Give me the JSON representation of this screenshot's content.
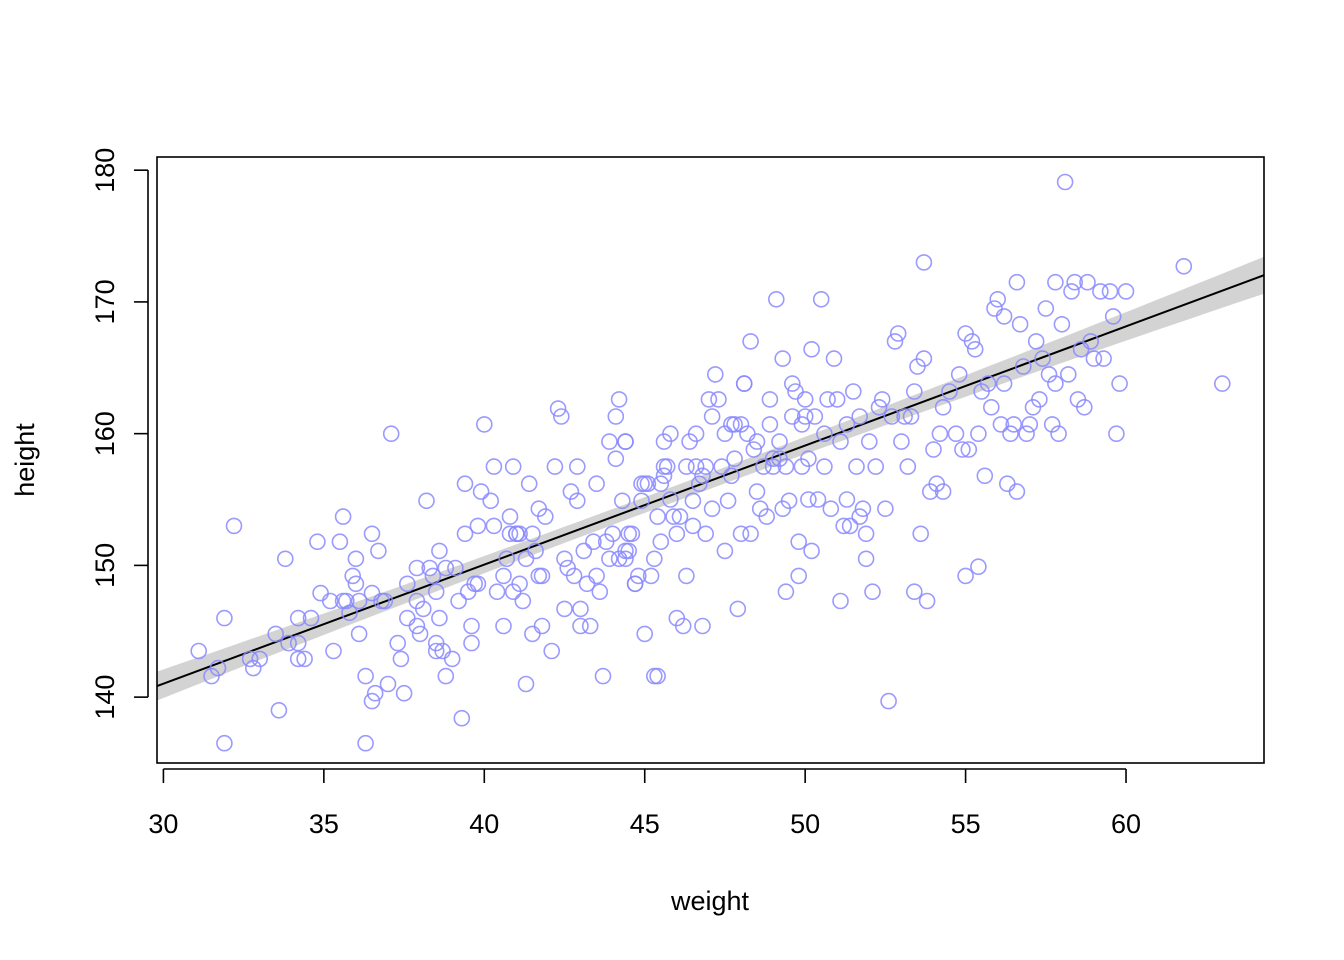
{
  "chart_data": {
    "type": "scatter",
    "xlabel": "weight",
    "ylabel": "height",
    "xlim": [
      29.8,
      64.3
    ],
    "ylim": [
      135,
      181
    ],
    "xticks": [
      "30",
      "35",
      "40",
      "45",
      "50",
      "55",
      "60"
    ],
    "yticks": [
      "140",
      "150",
      "160",
      "170",
      "180"
    ],
    "grid": false,
    "colors": {
      "points": "#8888ff",
      "line": "#000000",
      "band": "#d3d3d3",
      "frame": "#000000"
    },
    "regression_line": {
      "intercept": 113.9,
      "slope": 0.904
    },
    "interval_band": {
      "halfwidth_at_mean": 0.6,
      "halfwidth_at_ends": 1.4
    },
    "points": [
      [
        31.1,
        143.5
      ],
      [
        31.5,
        141.6
      ],
      [
        31.7,
        142.2
      ],
      [
        31.9,
        146.0
      ],
      [
        31.9,
        136.5
      ],
      [
        32.2,
        153.0
      ],
      [
        32.7,
        142.9
      ],
      [
        32.8,
        142.2
      ],
      [
        33.0,
        142.9
      ],
      [
        33.5,
        144.8
      ],
      [
        33.6,
        139.0
      ],
      [
        33.8,
        150.5
      ],
      [
        33.9,
        144.1
      ],
      [
        34.2,
        146.0
      ],
      [
        34.2,
        144.1
      ],
      [
        34.2,
        142.9
      ],
      [
        34.4,
        142.9
      ],
      [
        34.8,
        151.8
      ],
      [
        34.9,
        147.9
      ],
      [
        35.2,
        147.3
      ],
      [
        35.5,
        151.8
      ],
      [
        35.6,
        153.7
      ],
      [
        35.6,
        147.3
      ],
      [
        35.7,
        147.3
      ],
      [
        35.8,
        146.4
      ],
      [
        35.9,
        149.2
      ],
      [
        36.0,
        150.5
      ],
      [
        36.0,
        148.6
      ],
      [
        36.1,
        147.3
      ],
      [
        36.1,
        144.8
      ],
      [
        36.3,
        141.6
      ],
      [
        36.3,
        136.5
      ],
      [
        36.5,
        152.4
      ],
      [
        36.5,
        147.9
      ],
      [
        36.5,
        139.7
      ],
      [
        36.6,
        140.3
      ],
      [
        36.7,
        151.1
      ],
      [
        36.9,
        147.3
      ],
      [
        37.1,
        160.0
      ],
      [
        37.3,
        144.1
      ],
      [
        37.4,
        142.9
      ],
      [
        37.5,
        140.3
      ],
      [
        37.6,
        146.0
      ],
      [
        37.6,
        148.6
      ],
      [
        37.9,
        149.8
      ],
      [
        37.9,
        145.4
      ],
      [
        38.0,
        144.8
      ],
      [
        38.1,
        146.7
      ],
      [
        38.2,
        154.9
      ],
      [
        38.3,
        149.8
      ],
      [
        38.4,
        149.2
      ],
      [
        38.5,
        143.5
      ],
      [
        38.5,
        148.0
      ],
      [
        38.6,
        151.1
      ],
      [
        38.6,
        146.0
      ],
      [
        38.7,
        143.5
      ],
      [
        38.8,
        149.8
      ],
      [
        39.0,
        142.9
      ],
      [
        39.1,
        149.8
      ],
      [
        39.2,
        147.3
      ],
      [
        39.3,
        138.4
      ],
      [
        39.4,
        152.4
      ],
      [
        39.4,
        156.2
      ],
      [
        39.5,
        148.0
      ],
      [
        39.6,
        145.4
      ],
      [
        39.6,
        144.1
      ],
      [
        39.7,
        148.6
      ],
      [
        39.8,
        153.0
      ],
      [
        39.9,
        155.6
      ],
      [
        40.0,
        160.7
      ],
      [
        40.2,
        154.9
      ],
      [
        40.3,
        157.5
      ],
      [
        40.3,
        153.0
      ],
      [
        40.4,
        148.0
      ],
      [
        40.6,
        149.2
      ],
      [
        40.7,
        150.5
      ],
      [
        40.8,
        153.7
      ],
      [
        40.9,
        157.5
      ],
      [
        40.9,
        148.0
      ],
      [
        41.0,
        152.4
      ],
      [
        41.1,
        152.4
      ],
      [
        41.1,
        148.6
      ],
      [
        41.2,
        147.3
      ],
      [
        41.3,
        141.0
      ],
      [
        41.3,
        150.5
      ],
      [
        41.4,
        156.2
      ],
      [
        41.5,
        152.4
      ],
      [
        41.5,
        144.8
      ],
      [
        41.6,
        151.1
      ],
      [
        41.7,
        154.3
      ],
      [
        41.8,
        149.2
      ],
      [
        41.8,
        145.4
      ],
      [
        41.9,
        153.7
      ],
      [
        42.1,
        143.5
      ],
      [
        42.3,
        161.9
      ],
      [
        42.4,
        161.3
      ],
      [
        42.5,
        150.5
      ],
      [
        42.6,
        149.8
      ],
      [
        42.7,
        155.6
      ],
      [
        42.8,
        149.2
      ],
      [
        42.9,
        157.5
      ],
      [
        42.9,
        154.9
      ],
      [
        43.0,
        146.7
      ],
      [
        43.0,
        145.4
      ],
      [
        43.1,
        151.1
      ],
      [
        43.2,
        148.6
      ],
      [
        43.3,
        145.4
      ],
      [
        43.4,
        151.8
      ],
      [
        43.5,
        156.2
      ],
      [
        43.6,
        148.0
      ],
      [
        43.7,
        141.6
      ],
      [
        43.8,
        151.8
      ],
      [
        43.9,
        150.5
      ],
      [
        43.9,
        159.4
      ],
      [
        44.0,
        152.4
      ],
      [
        44.1,
        158.1
      ],
      [
        44.1,
        161.3
      ],
      [
        44.2,
        162.6
      ],
      [
        44.3,
        154.9
      ],
      [
        44.4,
        151.1
      ],
      [
        44.4,
        150.5
      ],
      [
        44.5,
        152.4
      ],
      [
        44.5,
        151.1
      ],
      [
        44.6,
        152.4
      ],
      [
        44.7,
        148.6
      ],
      [
        44.8,
        149.2
      ],
      [
        44.9,
        156.2
      ],
      [
        44.9,
        154.9
      ],
      [
        45.0,
        156.2
      ],
      [
        45.0,
        144.8
      ],
      [
        45.1,
        156.2
      ],
      [
        45.2,
        149.2
      ],
      [
        45.3,
        150.5
      ],
      [
        45.3,
        141.6
      ],
      [
        45.4,
        141.6
      ],
      [
        45.4,
        153.7
      ],
      [
        45.5,
        156.2
      ],
      [
        45.5,
        151.8
      ],
      [
        45.6,
        159.4
      ],
      [
        45.7,
        157.5
      ],
      [
        45.8,
        160.0
      ],
      [
        45.9,
        153.7
      ],
      [
        46.0,
        152.4
      ],
      [
        46.0,
        146.0
      ],
      [
        46.1,
        153.7
      ],
      [
        46.2,
        145.4
      ],
      [
        46.3,
        157.5
      ],
      [
        46.3,
        149.2
      ],
      [
        46.4,
        159.4
      ],
      [
        46.5,
        153.0
      ],
      [
        46.5,
        154.9
      ],
      [
        46.6,
        157.5
      ],
      [
        46.7,
        156.2
      ],
      [
        46.8,
        145.4
      ],
      [
        46.8,
        156.8
      ],
      [
        46.9,
        157.5
      ],
      [
        47.0,
        162.6
      ],
      [
        47.1,
        154.3
      ],
      [
        47.1,
        161.3
      ],
      [
        47.2,
        164.5
      ],
      [
        47.3,
        162.6
      ],
      [
        47.4,
        157.5
      ],
      [
        47.5,
        151.1
      ],
      [
        47.6,
        154.9
      ],
      [
        47.7,
        160.7
      ],
      [
        47.7,
        156.8
      ],
      [
        47.8,
        158.1
      ],
      [
        47.9,
        146.7
      ],
      [
        48.0,
        152.4
      ],
      [
        48.1,
        163.8
      ],
      [
        48.1,
        163.8
      ],
      [
        48.2,
        160.0
      ],
      [
        48.3,
        167.0
      ],
      [
        48.3,
        152.4
      ],
      [
        48.5,
        159.4
      ],
      [
        48.5,
        155.6
      ],
      [
        48.6,
        154.3
      ],
      [
        48.7,
        157.5
      ],
      [
        48.8,
        153.7
      ],
      [
        48.9,
        160.7
      ],
      [
        48.9,
        162.6
      ],
      [
        49.0,
        158.1
      ],
      [
        49.0,
        157.5
      ],
      [
        49.1,
        170.2
      ],
      [
        49.2,
        159.4
      ],
      [
        49.3,
        165.7
      ],
      [
        49.3,
        154.3
      ],
      [
        49.4,
        148.0
      ],
      [
        49.4,
        157.5
      ],
      [
        49.5,
        154.9
      ],
      [
        49.6,
        161.3
      ],
      [
        49.6,
        163.8
      ],
      [
        49.7,
        163.2
      ],
      [
        49.8,
        151.8
      ],
      [
        49.9,
        157.5
      ],
      [
        49.9,
        160.7
      ],
      [
        50.0,
        161.3
      ],
      [
        50.0,
        162.6
      ],
      [
        50.1,
        158.1
      ],
      [
        50.2,
        166.4
      ],
      [
        50.2,
        151.1
      ],
      [
        50.3,
        161.3
      ],
      [
        50.4,
        155.0
      ],
      [
        50.5,
        170.2
      ],
      [
        50.6,
        157.5
      ],
      [
        50.6,
        160.0
      ],
      [
        50.7,
        162.6
      ],
      [
        50.8,
        154.3
      ],
      [
        50.9,
        165.7
      ],
      [
        51.0,
        162.6
      ],
      [
        51.1,
        147.3
      ],
      [
        51.1,
        159.4
      ],
      [
        51.2,
        153.0
      ],
      [
        51.3,
        155.0
      ],
      [
        51.4,
        153.0
      ],
      [
        51.5,
        163.2
      ],
      [
        51.6,
        157.5
      ],
      [
        51.7,
        161.3
      ],
      [
        51.8,
        154.3
      ],
      [
        51.9,
        152.4
      ],
      [
        51.9,
        150.5
      ],
      [
        52.0,
        159.4
      ],
      [
        52.1,
        148.0
      ],
      [
        52.2,
        157.5
      ],
      [
        52.3,
        162.0
      ],
      [
        52.5,
        154.3
      ],
      [
        52.6,
        139.7
      ],
      [
        52.7,
        161.3
      ],
      [
        52.8,
        167.0
      ],
      [
        52.9,
        167.6
      ],
      [
        53.0,
        159.4
      ],
      [
        53.1,
        161.3
      ],
      [
        53.2,
        157.5
      ],
      [
        53.3,
        161.3
      ],
      [
        53.4,
        163.2
      ],
      [
        53.4,
        148.0
      ],
      [
        53.5,
        165.1
      ],
      [
        53.6,
        152.4
      ],
      [
        53.7,
        173.0
      ],
      [
        53.8,
        147.3
      ],
      [
        53.9,
        155.6
      ],
      [
        54.0,
        158.8
      ],
      [
        54.2,
        160.0
      ],
      [
        54.3,
        162.0
      ],
      [
        54.5,
        163.2
      ],
      [
        54.7,
        160.0
      ],
      [
        54.8,
        164.5
      ],
      [
        54.9,
        158.8
      ],
      [
        55.0,
        149.2
      ],
      [
        55.1,
        158.8
      ],
      [
        55.2,
        167.0
      ],
      [
        55.3,
        166.4
      ],
      [
        55.4,
        149.9
      ],
      [
        55.5,
        163.2
      ],
      [
        55.6,
        156.8
      ],
      [
        55.7,
        163.8
      ],
      [
        55.8,
        162.0
      ],
      [
        55.9,
        169.5
      ],
      [
        56.0,
        170.2
      ],
      [
        56.1,
        160.7
      ],
      [
        56.2,
        163.8
      ],
      [
        56.3,
        156.2
      ],
      [
        56.4,
        160.0
      ],
      [
        56.5,
        160.7
      ],
      [
        56.6,
        155.6
      ],
      [
        56.7,
        168.3
      ],
      [
        56.8,
        165.1
      ],
      [
        56.9,
        160.0
      ],
      [
        57.0,
        160.7
      ],
      [
        57.1,
        162.0
      ],
      [
        57.2,
        167.0
      ],
      [
        57.3,
        162.6
      ],
      [
        57.4,
        165.7
      ],
      [
        57.5,
        169.5
      ],
      [
        57.6,
        164.5
      ],
      [
        57.7,
        160.7
      ],
      [
        57.8,
        163.8
      ],
      [
        57.9,
        160.0
      ],
      [
        58.0,
        168.3
      ],
      [
        58.1,
        179.1
      ],
      [
        58.2,
        164.5
      ],
      [
        58.3,
        170.8
      ],
      [
        58.4,
        171.5
      ],
      [
        58.5,
        162.6
      ],
      [
        58.6,
        166.4
      ],
      [
        58.7,
        162.0
      ],
      [
        58.8,
        171.5
      ],
      [
        58.9,
        167.0
      ],
      [
        59.0,
        165.7
      ],
      [
        59.2,
        170.8
      ],
      [
        59.3,
        165.7
      ],
      [
        59.5,
        170.8
      ],
      [
        59.6,
        168.9
      ],
      [
        59.7,
        160.0
      ],
      [
        59.8,
        163.8
      ],
      [
        60.0,
        170.8
      ],
      [
        61.8,
        172.7
      ],
      [
        63.0,
        163.8
      ],
      [
        34.6,
        146.0
      ],
      [
        36.8,
        147.3
      ],
      [
        37.9,
        147.3
      ],
      [
        38.5,
        144.1
      ],
      [
        39.8,
        148.6
      ],
      [
        40.8,
        152.4
      ],
      [
        41.7,
        149.2
      ],
      [
        42.2,
        157.5
      ],
      [
        43.5,
        149.2
      ],
      [
        44.2,
        150.5
      ],
      [
        45.8,
        155.0
      ],
      [
        46.6,
        160.0
      ],
      [
        47.5,
        160.0
      ],
      [
        48.4,
        158.8
      ],
      [
        49.2,
        158.1
      ],
      [
        50.1,
        155.0
      ],
      [
        51.3,
        160.7
      ],
      [
        52.4,
        162.6
      ],
      [
        53.7,
        165.7
      ],
      [
        55.0,
        167.6
      ],
      [
        56.2,
        168.9
      ],
      [
        57.8,
        171.5
      ],
      [
        35.3,
        143.5
      ],
      [
        37.0,
        141.0
      ],
      [
        38.8,
        141.6
      ],
      [
        40.6,
        145.4
      ],
      [
        42.5,
        146.7
      ],
      [
        44.7,
        148.6
      ],
      [
        46.9,
        152.4
      ],
      [
        49.8,
        149.2
      ],
      [
        51.7,
        153.7
      ],
      [
        54.1,
        156.2
      ],
      [
        54.3,
        155.6
      ],
      [
        55.4,
        160.0
      ],
      [
        56.6,
        171.5
      ],
      [
        45.6,
        157.5
      ],
      [
        45.6,
        156.8
      ],
      [
        47.8,
        160.7
      ],
      [
        48.0,
        160.7
      ],
      [
        44.4,
        159.4
      ],
      [
        44.4,
        159.4
      ],
      [
        41.0,
        152.4
      ]
    ]
  }
}
